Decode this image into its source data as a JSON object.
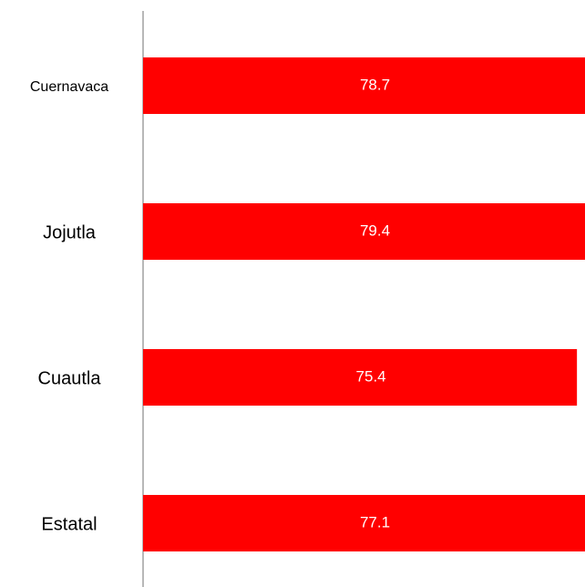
{
  "chart_data": {
    "type": "bar",
    "orientation": "horizontal",
    "categories": [
      "Cuernavaca",
      "Jojutla",
      "Cuautla",
      "Estatal"
    ],
    "values": [
      78.7,
      79.4,
      75.4,
      77.1
    ],
    "color": "#ff0000",
    "xlim": [
      0,
      76.8
    ]
  }
}
